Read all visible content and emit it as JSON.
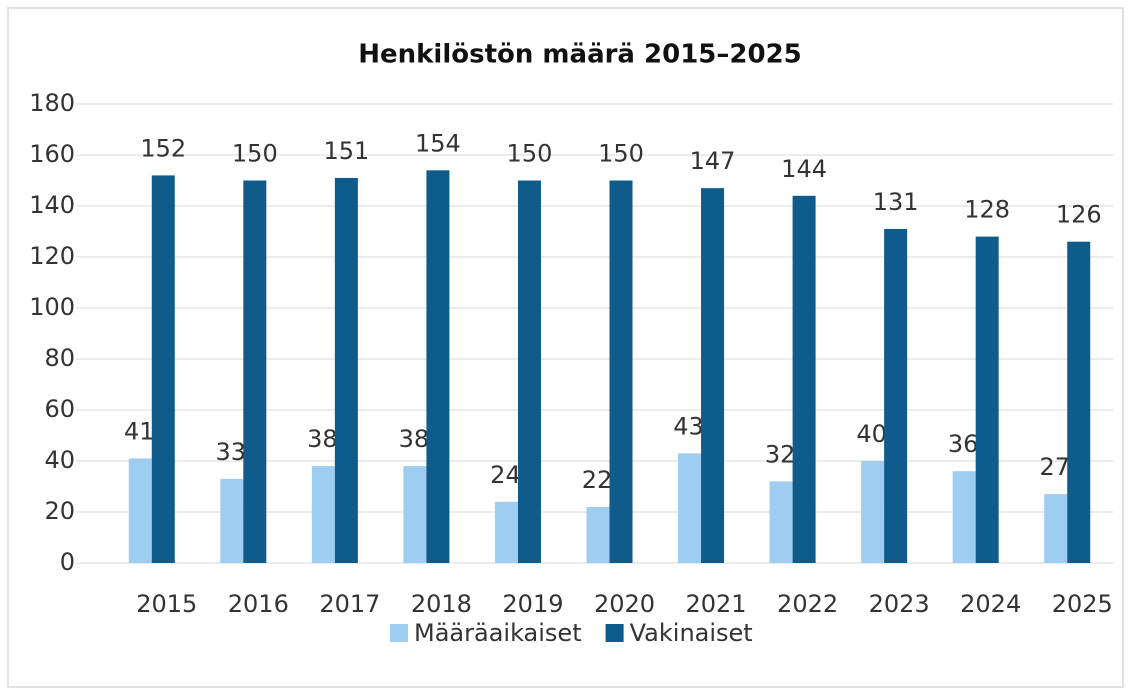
{
  "chart_data": {
    "type": "bar",
    "title": "Henkilöstön määrä 2015–2025",
    "categories": [
      "2015",
      "2016",
      "2017",
      "2018",
      "2019",
      "2020",
      "2021",
      "2022",
      "2023",
      "2024",
      "2025"
    ],
    "series": [
      {
        "name": "Määräaikaiset",
        "color": "#9dcdf0",
        "values": [
          41,
          33,
          38,
          38,
          24,
          22,
          43,
          32,
          40,
          36,
          27
        ]
      },
      {
        "name": "Vakinaiset",
        "color": "#0e5b8c",
        "values": [
          152,
          150,
          151,
          154,
          150,
          150,
          147,
          144,
          131,
          128,
          126
        ]
      }
    ],
    "ylim": [
      0,
      180
    ],
    "yticks": [
      0,
      20,
      40,
      60,
      80,
      100,
      120,
      140,
      160,
      180
    ],
    "grid": true,
    "legend": "bottom"
  }
}
